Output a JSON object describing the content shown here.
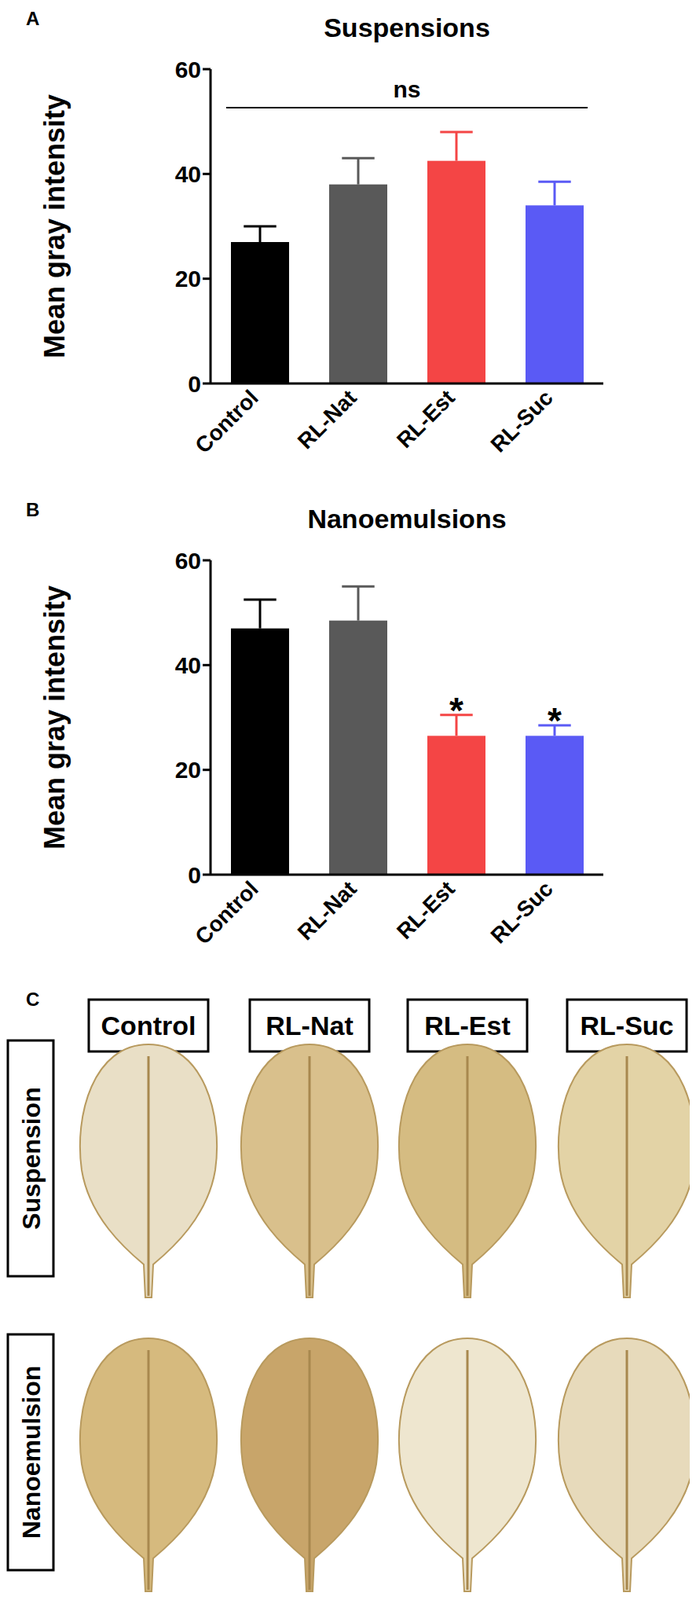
{
  "chart_data": [
    {
      "panel_label": "A",
      "type": "bar",
      "title": "Suspensions",
      "y_label": "Mean gray intensity",
      "categories": [
        "Control",
        "RL-Nat",
        "RL-Est",
        "RL-Suc"
      ],
      "values": [
        27,
        38,
        42.5,
        34
      ],
      "error": [
        3,
        5,
        5.5,
        4.5
      ],
      "colors": [
        "#000000",
        "#595959",
        "#f44545",
        "#5a5af5"
      ],
      "ylim": [
        0,
        60
      ],
      "yticks": [
        0,
        20,
        40,
        60
      ],
      "annotation": "ns"
    },
    {
      "panel_label": "B",
      "type": "bar",
      "title": "Nanoemulsions",
      "y_label": "Mean gray intensity",
      "categories": [
        "Control",
        "RL-Nat",
        "RL-Est",
        "RL-Suc"
      ],
      "values": [
        47,
        48.5,
        26.5,
        26.5
      ],
      "error": [
        5.5,
        6.5,
        4,
        2
      ],
      "colors": [
        "#000000",
        "#595959",
        "#f44545",
        "#5a5af5"
      ],
      "ylim": [
        0,
        60
      ],
      "yticks": [
        0,
        20,
        40,
        60
      ],
      "significance": [
        null,
        null,
        "*",
        "*"
      ]
    }
  ],
  "images": {
    "panel_label": "C",
    "columns": [
      "Control",
      "RL-Nat",
      "RL-Est",
      "RL-Suc"
    ],
    "rows": [
      "Suspension",
      "Nanoemulsion"
    ]
  }
}
